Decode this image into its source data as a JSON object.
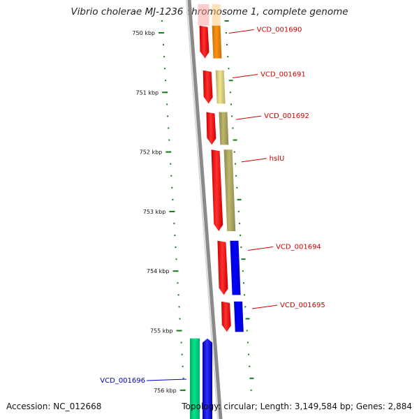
{
  "title": "Vibrio cholerae MJ-1236 chromosome 1, complete genome",
  "footer": {
    "accession": "Accession: NC_012668",
    "stats": "Topology: circular; Length: 3,149,584 bp; Genes: 2,884"
  },
  "colors": {
    "backbone": "#8a8a8a",
    "tick": "#1a7a1a",
    "forward_label": "#cc0000",
    "reverse_label": "#0000cc"
  },
  "ruler": {
    "ticks": [
      "750 kbp",
      "751 kbp",
      "752 kbp",
      "753 kbp",
      "754 kbp",
      "755 kbp",
      "756 kbp"
    ]
  },
  "genes": [
    {
      "label": "VCD_001690",
      "strand": "forward",
      "start_kbp": 749.88,
      "end_kbp": 750.43,
      "category_color": "#ff8c00"
    },
    {
      "label": "VCD_001691",
      "strand": "forward",
      "start_kbp": 750.63,
      "end_kbp": 751.19,
      "category_color": "#f0e68c"
    },
    {
      "label": "VCD_001692",
      "strand": "forward",
      "start_kbp": 751.33,
      "end_kbp": 751.88,
      "category_color": "#bdb76b"
    },
    {
      "label": "hslU",
      "strand": "forward",
      "start_kbp": 751.96,
      "end_kbp": 753.33,
      "category_color": "#bdb76b"
    },
    {
      "label": "VCD_001694",
      "strand": "forward",
      "start_kbp": 753.49,
      "end_kbp": 754.4,
      "category_color": "#0000ff"
    },
    {
      "label": "VCD_001695",
      "strand": "forward",
      "start_kbp": 754.51,
      "end_kbp": 755.02,
      "category_color": "#0000ff"
    },
    {
      "label": "VCD_001696",
      "strand": "reverse",
      "start_kbp": 755.13,
      "end_kbp": 756.5,
      "category_color": "#00e68a"
    }
  ]
}
